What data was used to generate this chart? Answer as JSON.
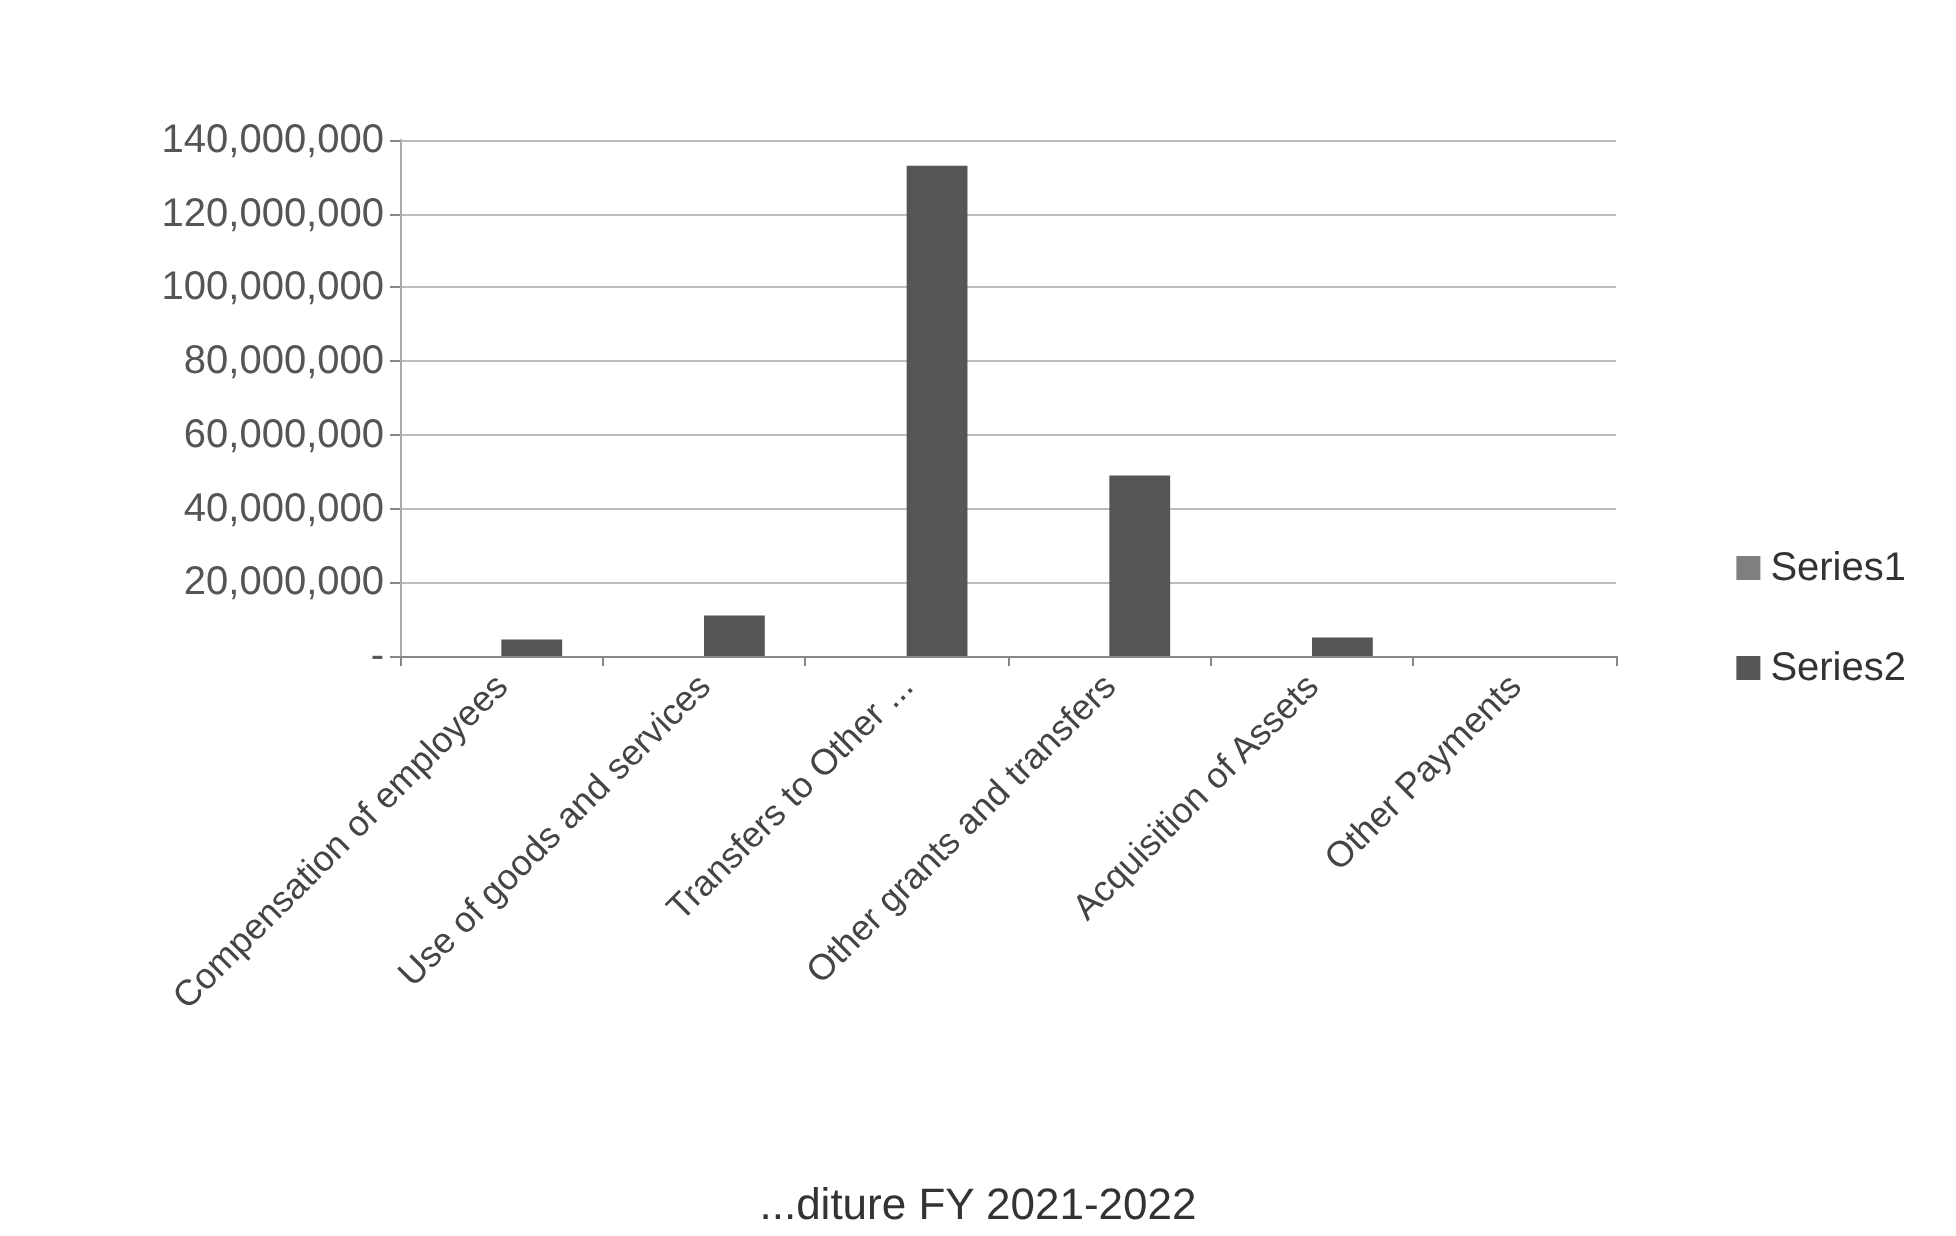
{
  "chart_data": {
    "type": "bar",
    "title": "...diture FY 2021-2022",
    "categories": [
      "Compensation of employees",
      "Use of goods and services",
      "Transfers to Other ...",
      "Other grants and transfers",
      "Acquisition of Assets",
      "Other Payments"
    ],
    "series": [
      {
        "name": "Series1",
        "color": "#7f7f7f",
        "values": [
          null,
          null,
          null,
          null,
          null,
          null
        ]
      },
      {
        "name": "Series2",
        "color": "#555555",
        "values": [
          4500000,
          11000000,
          133000000,
          49000000,
          5000000,
          0
        ]
      }
    ],
    "ylim": [
      0,
      140000000
    ],
    "yticks": [
      {
        "value": 0,
        "label": "-"
      },
      {
        "value": 20000000,
        "label": "20,000,000"
      },
      {
        "value": 40000000,
        "label": "40,000,000"
      },
      {
        "value": 60000000,
        "label": "60,000,000"
      },
      {
        "value": 80000000,
        "label": "80,000,000"
      },
      {
        "value": 100000000,
        "label": "100,000,000"
      },
      {
        "value": 120000000,
        "label": "120,000,000"
      },
      {
        "value": 140000000,
        "label": "140,000,000"
      }
    ],
    "grid": "y",
    "legend": "right"
  }
}
